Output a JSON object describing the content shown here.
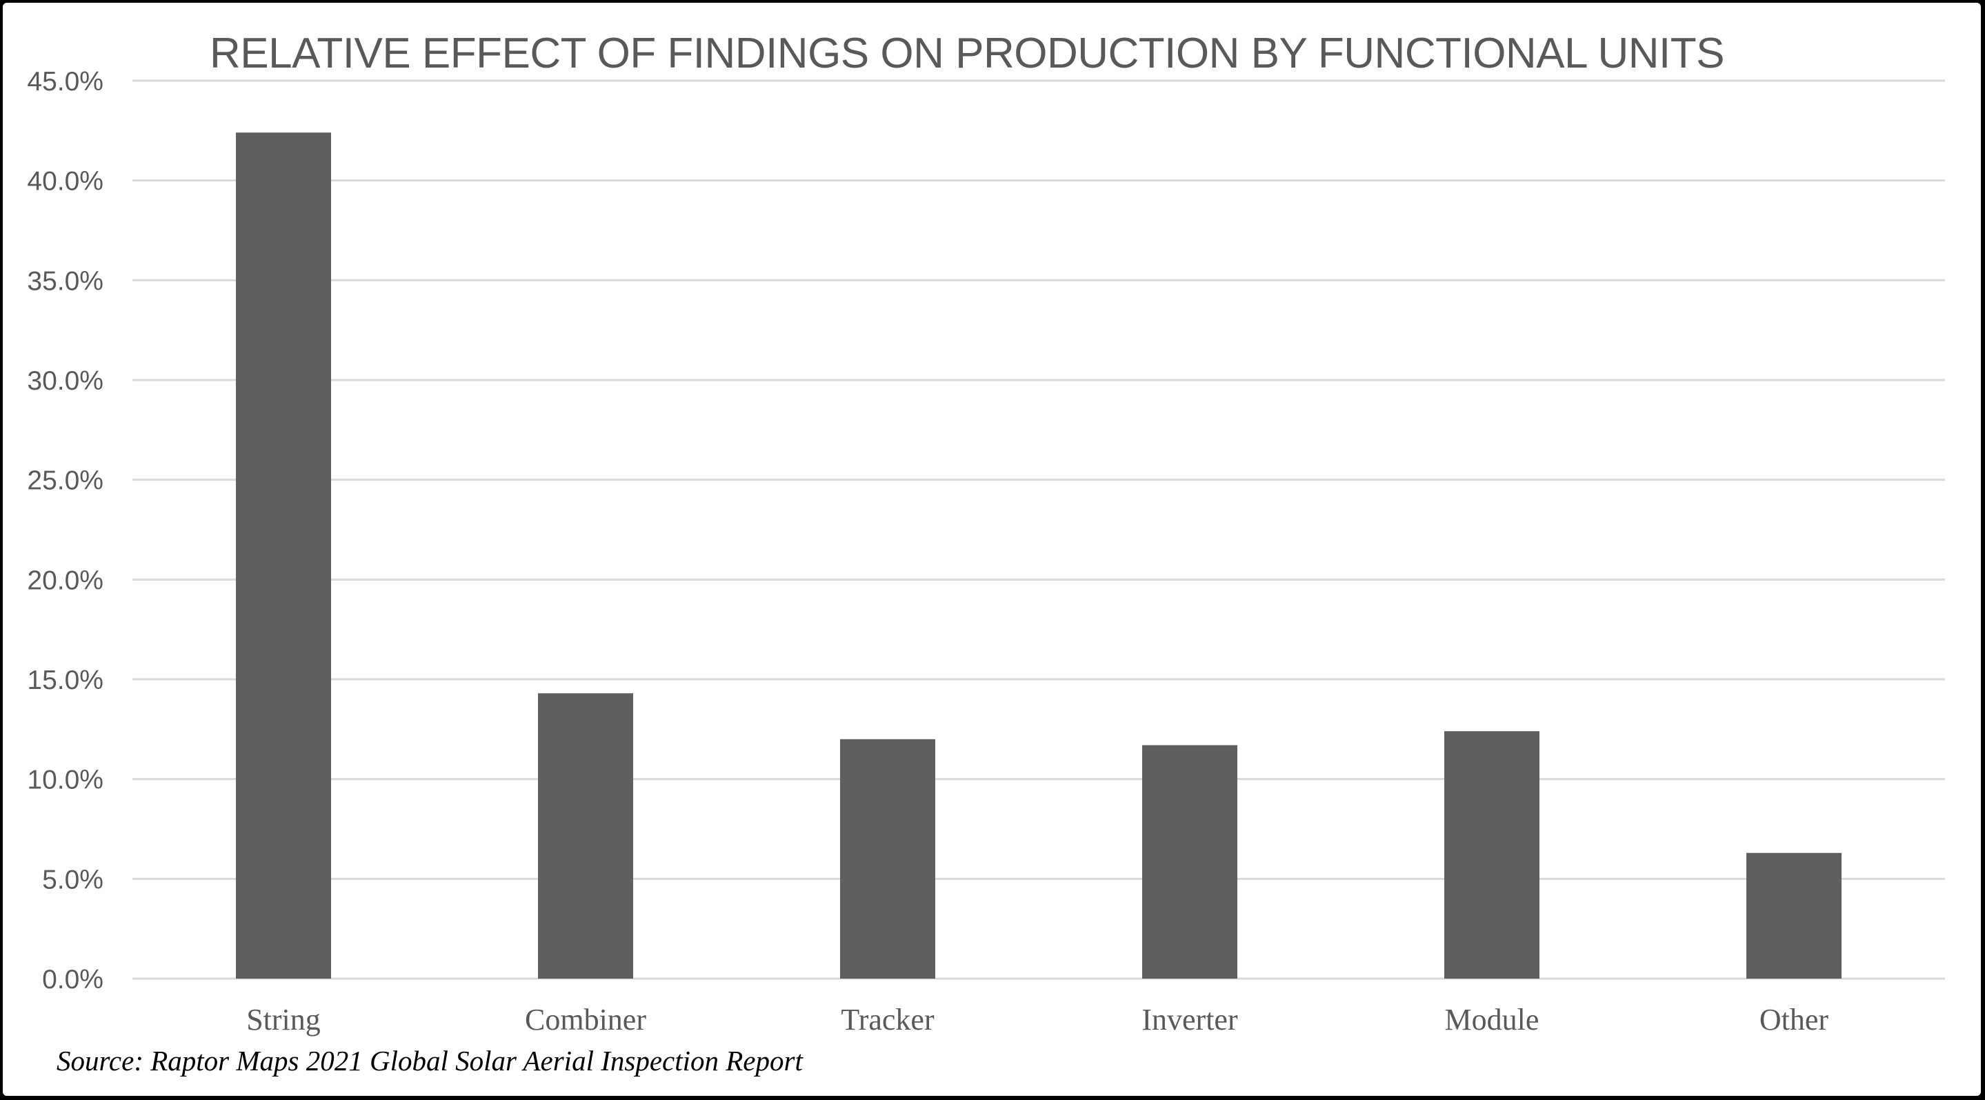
{
  "chart_data": {
    "type": "bar",
    "title": "RELATIVE EFFECT OF FINDINGS ON PRODUCTION BY FUNCTIONAL UNITS",
    "xlabel": "",
    "ylabel": "",
    "categories": [
      "String",
      "Combiner",
      "Tracker",
      "Inverter",
      "Module",
      "Other"
    ],
    "values": [
      42.4,
      14.3,
      12.0,
      11.7,
      12.4,
      6.3
    ],
    "y_tick_labels": [
      "0.0%",
      "5.0%",
      "10.0%",
      "15.0%",
      "20.0%",
      "25.0%",
      "30.0%",
      "35.0%",
      "40.0%",
      "45.0%"
    ],
    "ylim": [
      0,
      45
    ],
    "y_unit": "%",
    "grid": true,
    "legend": "none",
    "bar_color": "#5f5f5f",
    "grid_color": "#d9d9d9"
  },
  "source_note": "Source: Raptor Maps 2021 Global Solar Aerial Inspection Report"
}
